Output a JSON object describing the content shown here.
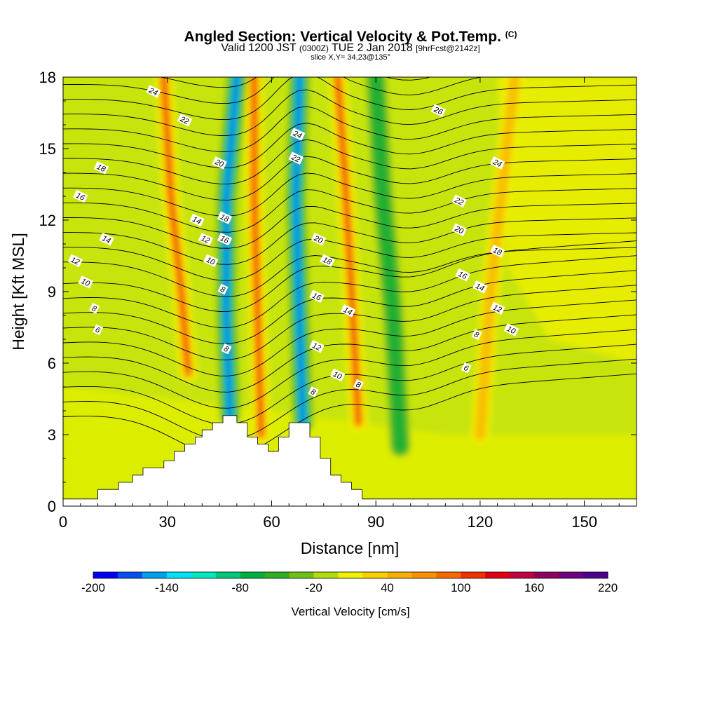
{
  "header": {
    "title": "Angled Section: Vertical Velocity & Pot.Temp.",
    "title_tag": "(C)",
    "valid_prefix": "Valid 1200 JST",
    "valid_utc": "(0300Z)",
    "valid_date": "TUE 2 Jan 2018",
    "forecast_tag": "[9hrFcst@2142z]",
    "slice_info": "slice X,Y= 34,23@135°"
  },
  "chart_data": {
    "type": "heatmap",
    "title": "Angled Section: Vertical Velocity & Pot.Temp.",
    "xlabel": "Distance [nm]",
    "ylabel": "Height [Kft MSL]",
    "xlim": [
      0,
      165
    ],
    "ylim": [
      0,
      18
    ],
    "xticks": [
      0,
      30,
      60,
      90,
      120,
      150
    ],
    "yticks": [
      0,
      3,
      6,
      9,
      12,
      15,
      18
    ],
    "colorbar": {
      "label": "Vertical Velocity [cm/s]",
      "min": -200,
      "max": 220,
      "step": 20,
      "tick_labels": [
        -200,
        -140,
        -80,
        -20,
        40,
        100,
        160,
        220
      ],
      "colors": [
        "#0000f0",
        "#0050f0",
        "#00a0f0",
        "#00e0f8",
        "#00e8c0",
        "#00c878",
        "#00b040",
        "#30b020",
        "#70c018",
        "#b0dc10",
        "#f0f000",
        "#f8d000",
        "#f8b000",
        "#f89000",
        "#f86800",
        "#f03000",
        "#e00010",
        "#c00040",
        "#900060",
        "#700080",
        "#500090"
      ]
    },
    "terrain_kft": [
      [
        0,
        0.3
      ],
      [
        10,
        0.3
      ],
      [
        10,
        0.7
      ],
      [
        16,
        0.7
      ],
      [
        16,
        1
      ],
      [
        20,
        1
      ],
      [
        20,
        1.3
      ],
      [
        23,
        1.3
      ],
      [
        23,
        1.6
      ],
      [
        29,
        1.6
      ],
      [
        29,
        1.9
      ],
      [
        32,
        1.9
      ],
      [
        32,
        2.3
      ],
      [
        35,
        2.3
      ],
      [
        35,
        2.6
      ],
      [
        38,
        2.6
      ],
      [
        38,
        2.9
      ],
      [
        40,
        2.9
      ],
      [
        40,
        3.2
      ],
      [
        43,
        3.2
      ],
      [
        43,
        3.5
      ],
      [
        46,
        3.5
      ],
      [
        46,
        3.8
      ],
      [
        50,
        3.8
      ],
      [
        50,
        3.5
      ],
      [
        53,
        3.5
      ],
      [
        53,
        2.9
      ],
      [
        56,
        2.9
      ],
      [
        56,
        2.6
      ],
      [
        59,
        2.6
      ],
      [
        59,
        2.3
      ],
      [
        62,
        2.3
      ],
      [
        62,
        2.9
      ],
      [
        65,
        2.9
      ],
      [
        65,
        3.5
      ],
      [
        71,
        3.5
      ],
      [
        71,
        2.9
      ],
      [
        74,
        2.9
      ],
      [
        74,
        2
      ],
      [
        77,
        2
      ],
      [
        77,
        1.3
      ],
      [
        80,
        1.3
      ],
      [
        80,
        1
      ],
      [
        83,
        1
      ],
      [
        83,
        0.7
      ],
      [
        86,
        0.7
      ],
      [
        86,
        0.3
      ],
      [
        165,
        0.3
      ]
    ],
    "updraft_axes_nm": [
      {
        "name": "updraft-west",
        "kind": "up",
        "points": [
          [
            36,
            5.6
          ],
          [
            34,
            9
          ],
          [
            31,
            13
          ],
          [
            29,
            18
          ]
        ]
      },
      {
        "name": "updraft-central",
        "kind": "up",
        "points": [
          [
            57,
            3
          ],
          [
            56,
            8
          ],
          [
            55,
            13
          ],
          [
            55,
            18
          ]
        ]
      },
      {
        "name": "updraft-east",
        "kind": "up",
        "points": [
          [
            85,
            3.5
          ],
          [
            83,
            9
          ],
          [
            81,
            14
          ],
          [
            79,
            18
          ]
        ]
      },
      {
        "name": "updraft-far",
        "kind": "up",
        "points": [
          [
            120,
            3
          ],
          [
            123,
            9
          ],
          [
            126,
            13
          ],
          [
            130,
            18
          ]
        ]
      },
      {
        "name": "downdraft-west",
        "kind": "down",
        "points": [
          [
            48,
            3.8
          ],
          [
            47,
            8
          ],
          [
            47,
            13
          ],
          [
            50,
            18
          ]
        ]
      },
      {
        "name": "downdraft-east",
        "kind": "down",
        "points": [
          [
            69,
            3.5
          ],
          [
            68,
            8
          ],
          [
            67,
            13
          ],
          [
            68,
            18
          ]
        ]
      },
      {
        "name": "downdraft-mid",
        "kind": "down",
        "points": [
          [
            97,
            2.5
          ],
          [
            95,
            8
          ],
          [
            92,
            13
          ],
          [
            90,
            18
          ]
        ]
      }
    ],
    "theta_labels": [
      {
        "text": "24",
        "x": 26,
        "y": 17.4
      },
      {
        "text": "22",
        "x": 35,
        "y": 16.2
      },
      {
        "text": "18",
        "x": 11,
        "y": 14.2
      },
      {
        "text": "16",
        "x": 5,
        "y": 13.0
      },
      {
        "text": "14",
        "x": 12.5,
        "y": 11.2
      },
      {
        "text": "12",
        "x": 3.5,
        "y": 10.3
      },
      {
        "text": "10",
        "x": 6.5,
        "y": 9.4
      },
      {
        "text": "8",
        "x": 9,
        "y": 8.3
      },
      {
        "text": "6",
        "x": 10,
        "y": 7.4
      },
      {
        "text": "20",
        "x": 45,
        "y": 14.4
      },
      {
        "text": "14",
        "x": 38.5,
        "y": 12.0
      },
      {
        "text": "12",
        "x": 41,
        "y": 11.2
      },
      {
        "text": "10",
        "x": 42.5,
        "y": 10.3
      },
      {
        "text": "18",
        "x": 46.5,
        "y": 12.1
      },
      {
        "text": "16",
        "x": 46.5,
        "y": 11.2
      },
      {
        "text": "8",
        "x": 46,
        "y": 9.1
      },
      {
        "text": "8",
        "x": 47,
        "y": 6.6
      },
      {
        "text": "24",
        "x": 67.5,
        "y": 15.6
      },
      {
        "text": "22",
        "x": 67,
        "y": 14.6
      },
      {
        "text": "20",
        "x": 73.5,
        "y": 11.2
      },
      {
        "text": "18",
        "x": 76,
        "y": 10.3
      },
      {
        "text": "16",
        "x": 73,
        "y": 8.8
      },
      {
        "text": "14",
        "x": 82,
        "y": 8.2
      },
      {
        "text": "12",
        "x": 73,
        "y": 6.7
      },
      {
        "text": "10",
        "x": 79,
        "y": 5.5
      },
      {
        "text": "8",
        "x": 85,
        "y": 5.1
      },
      {
        "text": "8",
        "x": 72,
        "y": 4.8
      },
      {
        "text": "26",
        "x": 108,
        "y": 16.6
      },
      {
        "text": "24",
        "x": 125,
        "y": 14.4
      },
      {
        "text": "22",
        "x": 114,
        "y": 12.8
      },
      {
        "text": "20",
        "x": 114,
        "y": 11.6
      },
      {
        "text": "18",
        "x": 125,
        "y": 10.7
      },
      {
        "text": "16",
        "x": 115,
        "y": 9.7
      },
      {
        "text": "14",
        "x": 120,
        "y": 9.2
      },
      {
        "text": "12",
        "x": 125,
        "y": 8.3
      },
      {
        "text": "10",
        "x": 129,
        "y": 7.4
      },
      {
        "text": "8",
        "x": 119,
        "y": 7.2
      },
      {
        "text": "6",
        "x": 116,
        "y": 5.8
      }
    ]
  }
}
